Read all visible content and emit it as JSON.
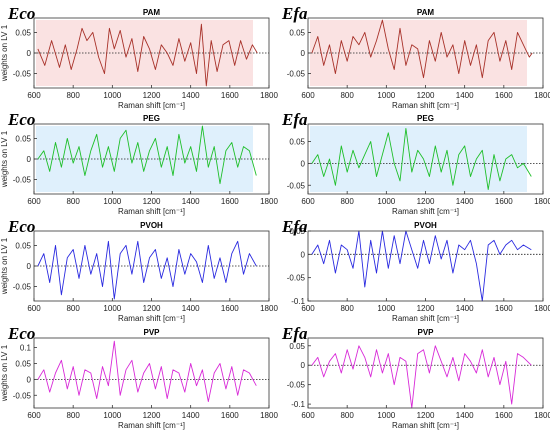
{
  "figure": {
    "chart_data": [
      {
        "type": "line",
        "corner_label": "Eco",
        "title": "PAM",
        "xlabel": "Raman shift [cm⁻¹]",
        "ylabel": "weights on LV 1",
        "xlim": [
          600,
          1800
        ],
        "ylim": [
          -0.085,
          0.085
        ],
        "xticks": [
          600,
          800,
          1000,
          1200,
          1400,
          1600,
          1800
        ],
        "yticks": [
          -0.05,
          0,
          0.05
        ],
        "ytick_labels": [
          "-0.05",
          "0",
          "0.05"
        ],
        "zero_line": "dotted",
        "grid": false,
        "series": [
          {
            "color": "#a8322a",
            "background": "#f6caca",
            "x": [
              620,
              655,
              690,
              730,
              760,
              790,
              820,
              845,
              870,
              900,
              930,
              960,
              985,
              1010,
              1040,
              1070,
              1100,
              1130,
              1160,
              1190,
              1220,
              1250,
              1280,
              1310,
              1340,
              1370,
              1400,
              1430,
              1455,
              1480,
              1505,
              1535,
              1565,
              1595,
              1625,
              1655,
              1685,
              1715,
              1740
            ],
            "y": [
              0.01,
              -0.03,
              0.03,
              -0.035,
              0.02,
              -0.04,
              0.01,
              0.06,
              0.03,
              0.05,
              -0.01,
              -0.05,
              0.06,
              0.01,
              0.055,
              -0.01,
              0.035,
              -0.045,
              0.04,
              0.01,
              -0.04,
              0.02,
              0.0,
              -0.03,
              0.035,
              -0.02,
              0.025,
              -0.05,
              0.07,
              -0.08,
              0.03,
              -0.045,
              0.02,
              0.03,
              -0.03,
              0.03,
              -0.015,
              0.02,
              0.0
            ]
          }
        ]
      },
      {
        "type": "line",
        "corner_label": "Efa",
        "title": "PAM",
        "xlabel": "Raman shift [cm⁻¹]",
        "ylabel": "",
        "xlim": [
          600,
          1800
        ],
        "ylim": [
          -0.085,
          0.085
        ],
        "xticks": [
          600,
          800,
          1000,
          1200,
          1400,
          1600,
          1800
        ],
        "yticks": [
          -0.05,
          0,
          0.05
        ],
        "ytick_labels": [
          "-0.05",
          "0",
          "0.05"
        ],
        "zero_line": "dotted",
        "grid": false,
        "series": [
          {
            "color": "#a8322a",
            "background": "#f6caca",
            "x": [
              620,
              650,
              680,
              710,
              740,
              770,
              800,
              830,
              860,
              890,
              920,
              950,
              980,
              1010,
              1040,
              1070,
              1100,
              1130,
              1160,
              1190,
              1220,
              1250,
              1280,
              1310,
              1340,
              1370,
              1400,
              1430,
              1460,
              1490,
              1520,
              1550,
              1580,
              1610,
              1640,
              1670,
              1700,
              1730,
              1745
            ],
            "y": [
              0.0,
              0.04,
              -0.03,
              0.02,
              -0.05,
              0.03,
              -0.02,
              0.04,
              0.02,
              0.05,
              -0.01,
              0.03,
              0.08,
              0.01,
              -0.04,
              0.06,
              -0.03,
              0.02,
              0.01,
              -0.06,
              0.03,
              -0.02,
              0.05,
              -0.01,
              0.02,
              -0.05,
              0.03,
              -0.03,
              0.02,
              -0.06,
              0.03,
              0.05,
              -0.02,
              0.03,
              -0.04,
              0.05,
              0.02,
              -0.01,
              0.0
            ]
          }
        ]
      },
      {
        "type": "line",
        "corner_label": "Eco",
        "title": "PEG",
        "xlabel": "Raman shift [cm⁻¹]",
        "ylabel": "weights on LV 1",
        "xlim": [
          600,
          1800
        ],
        "ylim": [
          -0.085,
          0.085
        ],
        "xticks": [
          600,
          800,
          1000,
          1200,
          1400,
          1600,
          1800
        ],
        "yticks": [
          -0.05,
          0,
          0.05
        ],
        "ytick_labels": [
          "-0.05",
          "0",
          "0.05"
        ],
        "zero_line": "dotted",
        "grid": false,
        "series": [
          {
            "color": "#1fbf2a",
            "background": "#c4e4fa",
            "x": [
              620,
              650,
              680,
              710,
              740,
              770,
              800,
              830,
              860,
              890,
              920,
              950,
              980,
              1010,
              1040,
              1070,
              1100,
              1130,
              1160,
              1190,
              1220,
              1250,
              1280,
              1310,
              1340,
              1370,
              1400,
              1430,
              1460,
              1490,
              1520,
              1550,
              1580,
              1610,
              1640,
              1670,
              1700,
              1735
            ],
            "y": [
              0.0,
              0.02,
              -0.03,
              0.04,
              -0.02,
              0.05,
              -0.01,
              0.03,
              -0.04,
              0.02,
              0.06,
              -0.02,
              0.03,
              -0.03,
              0.05,
              0.07,
              -0.01,
              0.04,
              -0.03,
              0.02,
              0.05,
              -0.02,
              0.03,
              -0.04,
              0.06,
              -0.01,
              0.03,
              -0.03,
              0.08,
              -0.02,
              0.03,
              -0.06,
              0.02,
              0.04,
              -0.02,
              0.03,
              0.02,
              -0.04
            ]
          }
        ]
      },
      {
        "type": "line",
        "corner_label": "Efa",
        "title": "PEG",
        "xlabel": "Raman shift [cm⁻¹]",
        "ylabel": "",
        "xlim": [
          600,
          1800
        ],
        "ylim": [
          -0.07,
          0.09
        ],
        "xticks": [
          600,
          800,
          1000,
          1200,
          1400,
          1600,
          1800
        ],
        "yticks": [
          -0.05,
          0,
          0.05
        ],
        "ytick_labels": [
          "-0.05",
          "0",
          "0.05"
        ],
        "zero_line": "dotted",
        "grid": false,
        "series": [
          {
            "color": "#1fbf2a",
            "background": "#c4e4fa",
            "x": [
              620,
              650,
              680,
              710,
              740,
              770,
              800,
              830,
              860,
              890,
              920,
              950,
              980,
              1010,
              1040,
              1070,
              1100,
              1130,
              1160,
              1190,
              1220,
              1250,
              1280,
              1310,
              1340,
              1370,
              1400,
              1430,
              1460,
              1490,
              1520,
              1550,
              1580,
              1610,
              1640,
              1670,
              1700,
              1740
            ],
            "y": [
              0.0,
              0.02,
              -0.03,
              0.01,
              -0.05,
              0.04,
              -0.02,
              0.03,
              -0.01,
              0.02,
              0.05,
              -0.03,
              0.02,
              0.07,
              0.0,
              -0.04,
              0.08,
              -0.02,
              0.03,
              0.01,
              -0.03,
              0.04,
              -0.02,
              0.03,
              -0.05,
              0.02,
              0.04,
              -0.03,
              0.01,
              0.03,
              -0.06,
              0.02,
              -0.04,
              0.01,
              0.02,
              -0.01,
              0.0,
              -0.03
            ]
          }
        ]
      },
      {
        "type": "line",
        "corner_label": "Eco",
        "title": "PVOH",
        "xlabel": "Raman shift [cm⁻¹]",
        "ylabel": "weights on LV 1",
        "xlim": [
          600,
          1800
        ],
        "ylim": [
          -0.085,
          0.085
        ],
        "xticks": [
          600,
          800,
          1000,
          1200,
          1400,
          1600,
          1800
        ],
        "yticks": [
          -0.05,
          0,
          0.05
        ],
        "ytick_labels": [
          "-0.05",
          "0",
          "0.05"
        ],
        "zero_line": "dotted",
        "grid": false,
        "series": [
          {
            "color": "#2a2ae0",
            "background": "",
            "x": [
              620,
              650,
              680,
              710,
              740,
              770,
              800,
              830,
              860,
              890,
              920,
              950,
              980,
              1010,
              1040,
              1070,
              1100,
              1130,
              1160,
              1190,
              1220,
              1250,
              1280,
              1310,
              1340,
              1370,
              1400,
              1430,
              1460,
              1490,
              1520,
              1550,
              1580,
              1610,
              1640,
              1670,
              1700,
              1735
            ],
            "y": [
              0.0,
              0.03,
              -0.04,
              0.05,
              -0.07,
              0.02,
              0.04,
              -0.03,
              0.05,
              -0.02,
              0.03,
              -0.05,
              0.06,
              -0.08,
              0.03,
              0.05,
              -0.02,
              0.06,
              -0.04,
              0.02,
              0.04,
              -0.03,
              0.02,
              -0.05,
              0.04,
              -0.02,
              0.03,
              0.01,
              -0.04,
              0.05,
              -0.03,
              0.02,
              -0.04,
              0.03,
              0.06,
              -0.02,
              0.03,
              0.0
            ]
          }
        ]
      },
      {
        "type": "line",
        "corner_label": "Efa",
        "title": "PVOH",
        "xlabel": "Raman shift [cm⁻¹]",
        "ylabel": "",
        "xlim": [
          600,
          1800
        ],
        "ylim": [
          -0.1,
          0.05
        ],
        "xticks": [
          600,
          800,
          1000,
          1200,
          1400,
          1600,
          1800
        ],
        "yticks": [
          -0.1,
          -0.05,
          0,
          0.05
        ],
        "ytick_labels": [
          "-0.1",
          "-0.05",
          "0",
          "0.05"
        ],
        "zero_line": "dotted",
        "grid": false,
        "series": [
          {
            "color": "#2a2ae0",
            "background": "",
            "x": [
              620,
              650,
              680,
              710,
              740,
              770,
              800,
              830,
              860,
              890,
              920,
              950,
              980,
              1010,
              1040,
              1070,
              1100,
              1130,
              1160,
              1190,
              1220,
              1250,
              1280,
              1310,
              1340,
              1370,
              1400,
              1430,
              1460,
              1490,
              1520,
              1550,
              1580,
              1610,
              1640,
              1670,
              1700,
              1740
            ],
            "y": [
              0.0,
              0.02,
              -0.02,
              0.03,
              -0.04,
              0.02,
              0.01,
              -0.03,
              0.05,
              -0.07,
              0.03,
              -0.04,
              0.05,
              -0.03,
              0.04,
              -0.02,
              0.05,
              0.01,
              -0.03,
              0.03,
              -0.02,
              0.04,
              -0.01,
              0.03,
              -0.04,
              0.02,
              0.01,
              0.03,
              -0.02,
              -0.1,
              0.02,
              0.03,
              0.0,
              0.02,
              0.03,
              0.01,
              0.02,
              0.01
            ]
          }
        ]
      },
      {
        "type": "line",
        "corner_label": "Eco",
        "title": "PVP",
        "xlabel": "Raman shift [cm⁻¹]",
        "ylabel": "weights on LV 1",
        "xlim": [
          600,
          1800
        ],
        "ylim": [
          -0.09,
          0.13
        ],
        "xticks": [
          600,
          800,
          1000,
          1200,
          1400,
          1600,
          1800
        ],
        "yticks": [
          -0.05,
          0,
          0.05,
          0.1
        ],
        "ytick_labels": [
          "-0.05",
          "0",
          "0.05",
          "0.1"
        ],
        "zero_line": "dotted",
        "grid": false,
        "series": [
          {
            "color": "#d82ad8",
            "background": "",
            "x": [
              620,
              650,
              680,
              710,
              740,
              770,
              800,
              830,
              860,
              890,
              920,
              950,
              980,
              1010,
              1040,
              1070,
              1100,
              1130,
              1160,
              1190,
              1220,
              1250,
              1280,
              1310,
              1340,
              1370,
              1400,
              1430,
              1460,
              1490,
              1520,
              1550,
              1580,
              1610,
              1640,
              1670,
              1700,
              1735
            ],
            "y": [
              0.0,
              0.03,
              -0.04,
              0.02,
              0.06,
              -0.03,
              0.04,
              -0.05,
              0.03,
              0.02,
              -0.06,
              0.04,
              -0.02,
              0.12,
              -0.05,
              0.03,
              0.06,
              -0.04,
              0.02,
              0.05,
              -0.03,
              0.04,
              -0.06,
              0.03,
              0.02,
              -0.04,
              0.05,
              -0.02,
              0.03,
              -0.07,
              0.02,
              0.05,
              -0.03,
              0.04,
              -0.05,
              0.03,
              0.02,
              -0.02
            ]
          }
        ]
      },
      {
        "type": "line",
        "corner_label": "Efa",
        "title": "PVP",
        "xlabel": "Raman shift [cm⁻¹]",
        "ylabel": "",
        "xlim": [
          600,
          1800
        ],
        "ylim": [
          -0.11,
          0.07
        ],
        "xticks": [
          600,
          800,
          1000,
          1200,
          1400,
          1600,
          1800
        ],
        "yticks": [
          -0.1,
          -0.05,
          0,
          0.05
        ],
        "ytick_labels": [
          "-0.1",
          "-0.05",
          "0",
          "0.05"
        ],
        "zero_line": "dotted",
        "grid": false,
        "series": [
          {
            "color": "#d82ad8",
            "background": "",
            "x": [
              620,
              650,
              680,
              710,
              740,
              770,
              800,
              830,
              860,
              890,
              920,
              950,
              980,
              1010,
              1040,
              1070,
              1100,
              1130,
              1160,
              1190,
              1220,
              1250,
              1280,
              1310,
              1340,
              1370,
              1400,
              1430,
              1460,
              1490,
              1520,
              1550,
              1580,
              1610,
              1640,
              1670,
              1700,
              1740
            ],
            "y": [
              0.0,
              0.02,
              -0.03,
              0.01,
              0.03,
              -0.02,
              0.04,
              -0.01,
              0.05,
              0.02,
              -0.03,
              0.04,
              -0.02,
              0.03,
              -0.05,
              0.02,
              0.01,
              -0.11,
              0.03,
              0.04,
              -0.02,
              0.05,
              0.01,
              -0.03,
              0.02,
              -0.04,
              0.03,
              0.01,
              -0.02,
              0.04,
              -0.03,
              0.02,
              -0.05,
              0.01,
              -0.1,
              0.03,
              0.02,
              0.0
            ]
          }
        ]
      }
    ]
  }
}
